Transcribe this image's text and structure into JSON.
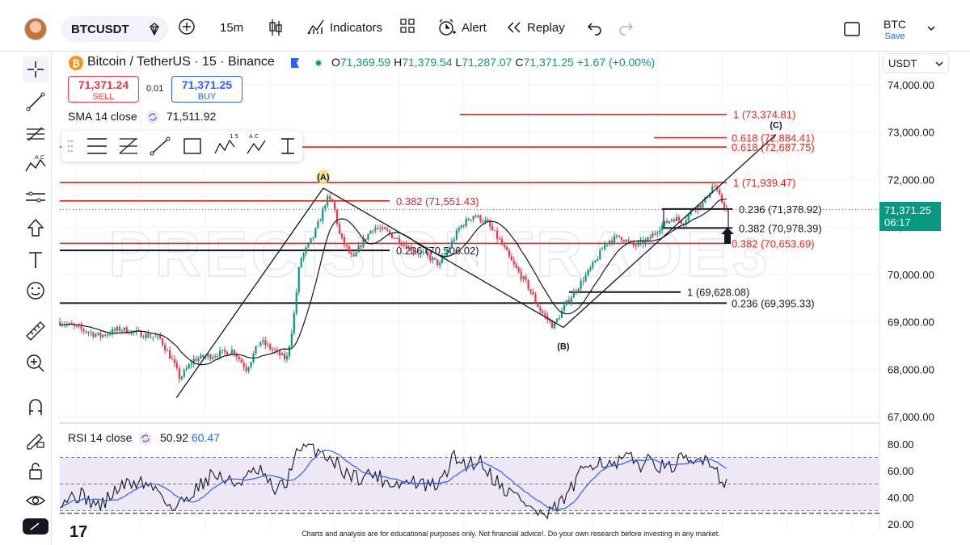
{
  "header": {
    "symbol": "BTCUSDT",
    "interval": "15m",
    "indicators_label": "Indicators",
    "alert_label": "Alert",
    "replay_label": "Replay",
    "layout_name": "BTC",
    "save_label": "Save"
  },
  "legend": {
    "instrument": "Bitcoin / TetherUS · 15 · Binance",
    "open_label": "O",
    "open": "71,369.59",
    "high_label": "H",
    "high": "71,379.54",
    "low_label": "L",
    "low": "71,287.07",
    "close_label": "C",
    "close": "71,371.25",
    "change": "+1.67 (+0.00%)",
    "sell_price": "71,371.24",
    "sell_label": "SELL",
    "spread": "0.01",
    "buy_price": "71,371.25",
    "buy_label": "BUY",
    "sma_label": "SMA 14 close",
    "sma_value": "71,511.92"
  },
  "currency": "USDT",
  "price_badge": {
    "price": "71,371.25",
    "countdown": "06:17"
  },
  "watermark": "PRECISIONTRADE3",
  "disclaimer": "Charts and analysis are for educational purposes only. Not financial advice!. Do your own research before investing in any market.",
  "colors": {
    "up": "#089981",
    "down": "#f23645",
    "red_level": "#e8221e",
    "sma": "#131722",
    "rsi": "#131722",
    "rsi_ma": "#2962ff",
    "rsi_band": "#ede7f6"
  },
  "chart_data": {
    "type": "candlestick",
    "y_axis_ticks": [
      "74,000.00",
      "73,000.00",
      "72,000.00",
      "71,000.00",
      "70,000.00",
      "69,000.00",
      "68,000.00",
      "67,000.00"
    ],
    "ylim": [
      66900,
      74300
    ],
    "pivots": [
      {
        "label": "(A)",
        "price": 71820
      },
      {
        "label": "(B)",
        "price": 68880
      },
      {
        "label": "(C)",
        "price": 72950
      }
    ],
    "levels": [
      {
        "label": "1 (73,374.81)",
        "price": 73374.81,
        "color": "red"
      },
      {
        "label": "0.618 (72,884.41)",
        "price": 72884.41,
        "color": "red"
      },
      {
        "label": "0.618 (72,687.75)",
        "price": 72687.75,
        "color": "red"
      },
      {
        "label": "1 (71,939.47)",
        "price": 71939.47,
        "color": "red"
      },
      {
        "label": "0.382 (71,551.43)",
        "price": 71551.43,
        "color": "red"
      },
      {
        "label": "0.236 (71,378.92)",
        "price": 71378.92,
        "color": "black"
      },
      {
        "label": "0.382 (70,978.39)",
        "price": 70978.39,
        "color": "black"
      },
      {
        "label": "0.382 (70,653.69)",
        "price": 70653.69,
        "color": "red"
      },
      {
        "label": "0.236 (70,506.02)",
        "price": 70506.02,
        "color": "black"
      },
      {
        "label": "1 (69,628.08)",
        "price": 69628.08,
        "color": "black"
      },
      {
        "label": "0.236 (69,395.33)",
        "price": 69395.33,
        "color": "black"
      }
    ],
    "price_path": [
      [
        0,
        69000
      ],
      [
        0.03,
        68850
      ],
      [
        0.06,
        68700
      ],
      [
        0.09,
        68850
      ],
      [
        0.12,
        68750
      ],
      [
        0.15,
        68650
      ],
      [
        0.17,
        68150
      ],
      [
        0.18,
        67800
      ],
      [
        0.2,
        68200
      ],
      [
        0.23,
        68300
      ],
      [
        0.26,
        68400
      ],
      [
        0.28,
        68000
      ],
      [
        0.3,
        68600
      ],
      [
        0.32,
        68400
      ],
      [
        0.34,
        68200
      ],
      [
        0.35,
        69000
      ],
      [
        0.36,
        70300
      ],
      [
        0.38,
        70800
      ],
      [
        0.39,
        71150
      ],
      [
        0.4,
        71600
      ],
      [
        0.41,
        71500
      ],
      [
        0.42,
        70800
      ],
      [
        0.44,
        70300
      ],
      [
        0.45,
        70600
      ],
      [
        0.47,
        71000
      ],
      [
        0.49,
        70900
      ],
      [
        0.51,
        70700
      ],
      [
        0.53,
        70500
      ],
      [
        0.55,
        70400
      ],
      [
        0.57,
        70200
      ],
      [
        0.6,
        71000
      ],
      [
        0.62,
        71250
      ],
      [
        0.64,
        71100
      ],
      [
        0.66,
        70700
      ],
      [
        0.68,
        70200
      ],
      [
        0.7,
        69800
      ],
      [
        0.72,
        69250
      ],
      [
        0.74,
        68900
      ],
      [
        0.76,
        69400
      ],
      [
        0.78,
        69800
      ],
      [
        0.8,
        70200
      ],
      [
        0.82,
        70700
      ],
      [
        0.84,
        70800
      ],
      [
        0.86,
        70600
      ],
      [
        0.88,
        70700
      ],
      [
        0.9,
        71000
      ],
      [
        0.92,
        71200
      ],
      [
        0.935,
        71100
      ],
      [
        0.95,
        71400
      ],
      [
        0.965,
        71500
      ],
      [
        0.98,
        71900
      ],
      [
        0.99,
        71600
      ],
      [
        1.0,
        71371
      ]
    ],
    "rsi": {
      "label": "RSI 14 close",
      "value": "50.92",
      "ma_value": "60.47",
      "y_axis_ticks": [
        "80.00",
        "60.00",
        "40.00",
        "20.00"
      ],
      "ylim": [
        18,
        82
      ],
      "bands": [
        70,
        50,
        30
      ],
      "path": [
        [
          0,
          38
        ],
        [
          0.03,
          42
        ],
        [
          0.06,
          33
        ],
        [
          0.09,
          48
        ],
        [
          0.12,
          52
        ],
        [
          0.15,
          45
        ],
        [
          0.17,
          30
        ],
        [
          0.2,
          45
        ],
        [
          0.23,
          58
        ],
        [
          0.26,
          50
        ],
        [
          0.28,
          55
        ],
        [
          0.3,
          60
        ],
        [
          0.32,
          45
        ],
        [
          0.34,
          50
        ],
        [
          0.35,
          70
        ],
        [
          0.37,
          78
        ],
        [
          0.39,
          75
        ],
        [
          0.41,
          68
        ],
        [
          0.43,
          58
        ],
        [
          0.45,
          55
        ],
        [
          0.47,
          58
        ],
        [
          0.49,
          52
        ],
        [
          0.51,
          50
        ],
        [
          0.53,
          52
        ],
        [
          0.55,
          48
        ],
        [
          0.57,
          50
        ],
        [
          0.59,
          70
        ],
        [
          0.61,
          65
        ],
        [
          0.63,
          68
        ],
        [
          0.65,
          55
        ],
        [
          0.67,
          45
        ],
        [
          0.69,
          40
        ],
        [
          0.71,
          30
        ],
        [
          0.73,
          25
        ],
        [
          0.75,
          35
        ],
        [
          0.77,
          48
        ],
        [
          0.79,
          65
        ],
        [
          0.81,
          68
        ],
        [
          0.83,
          62
        ],
        [
          0.85,
          70
        ],
        [
          0.87,
          65
        ],
        [
          0.89,
          68
        ],
        [
          0.91,
          60
        ],
        [
          0.93,
          68
        ],
        [
          0.95,
          65
        ],
        [
          0.97,
          72
        ],
        [
          0.99,
          55
        ],
        [
          1.0,
          51
        ]
      ]
    }
  }
}
